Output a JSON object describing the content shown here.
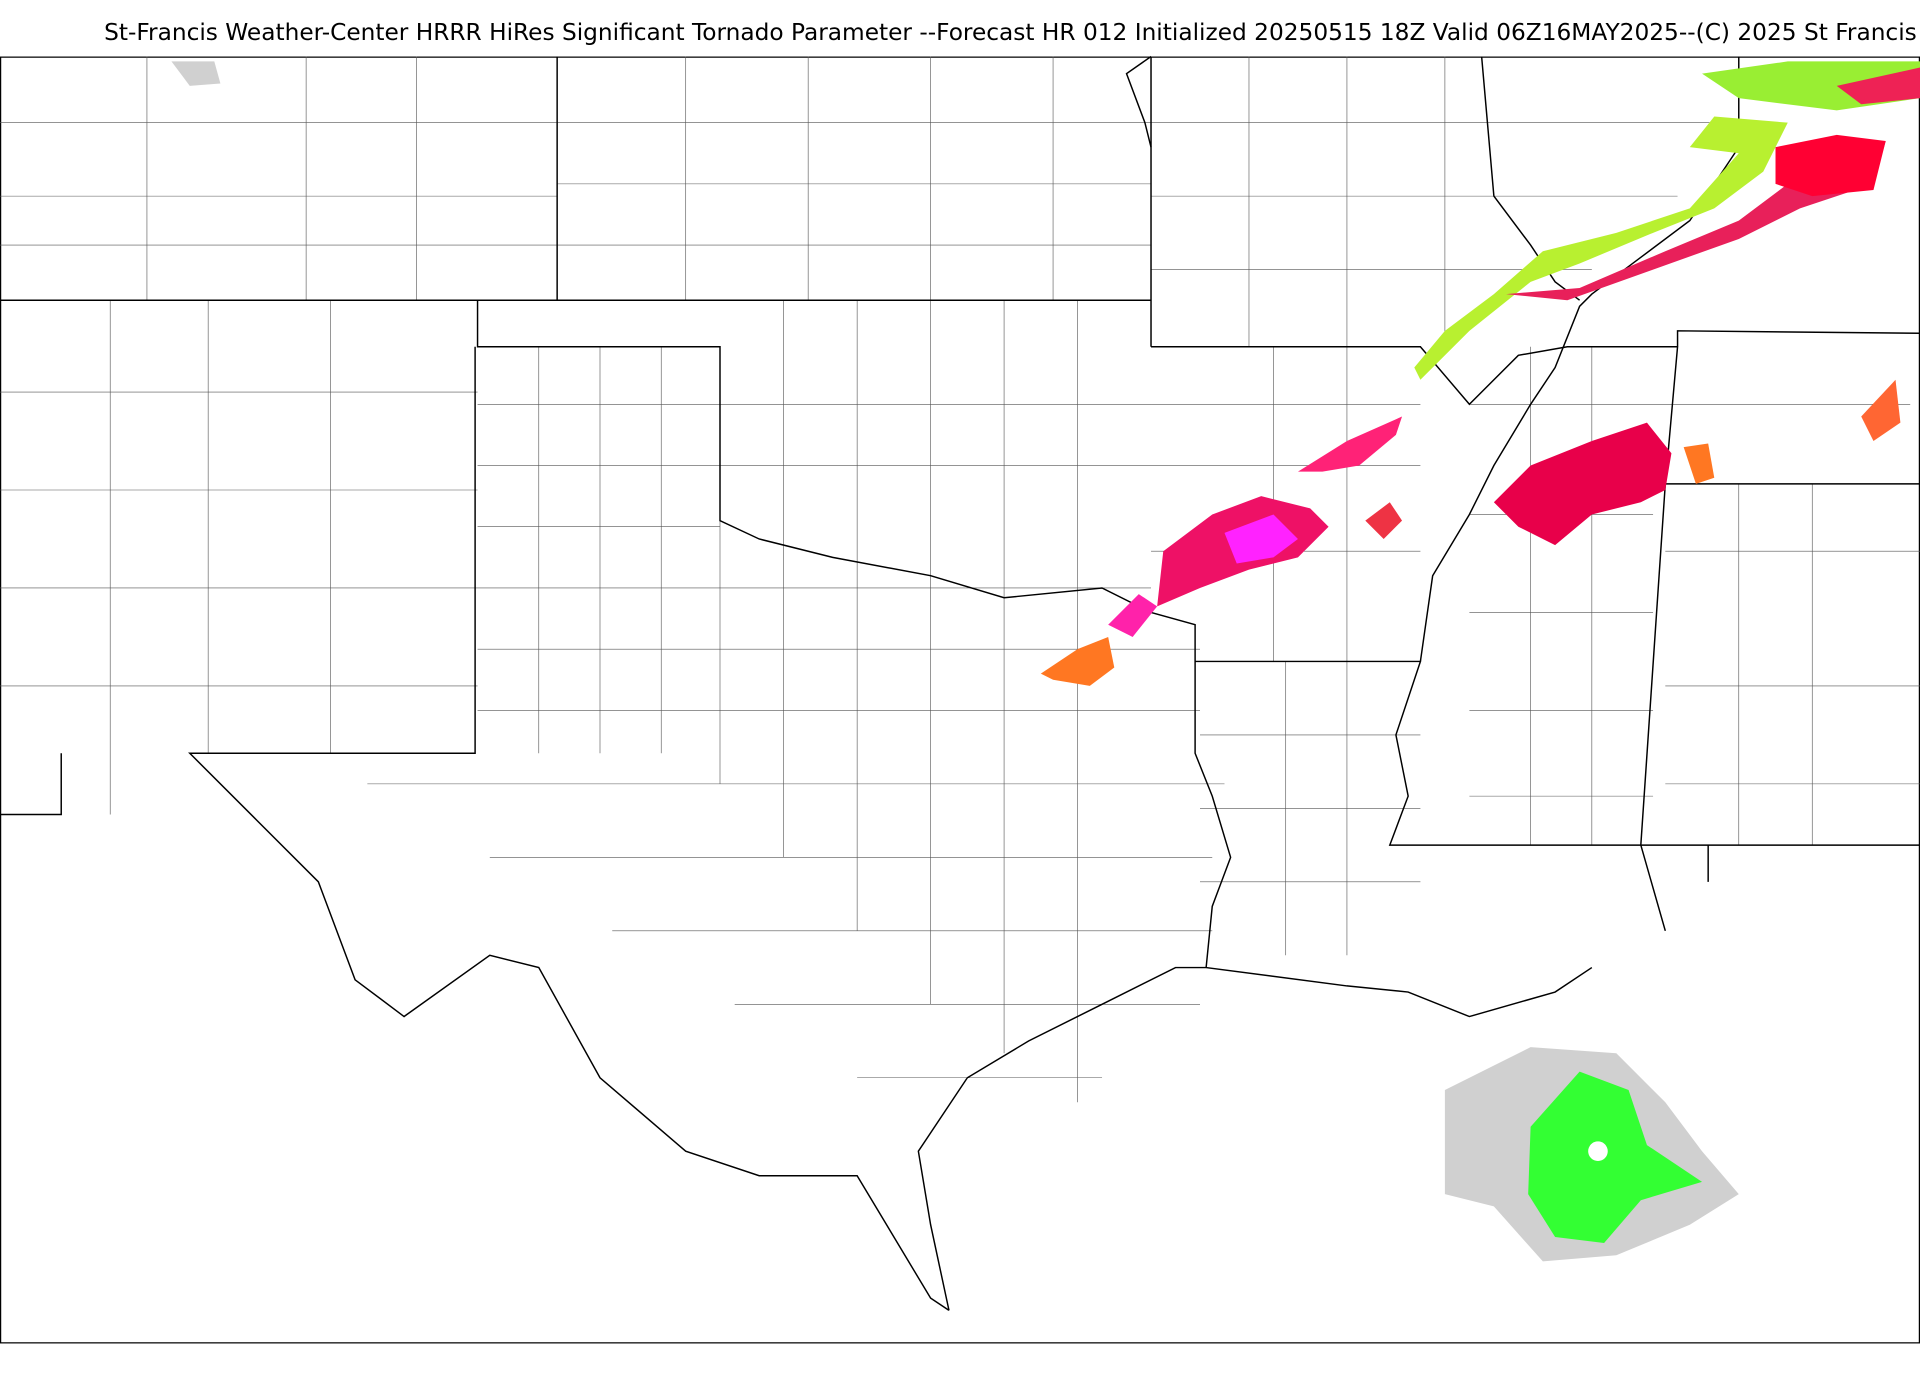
{
  "title": "St-Francis Weather-Center HRRR HiRes Significant Tornado Parameter --Forecast HR 012 Initialized 20250515 18Z Valid 06Z16MAY2025--(C) 2025 St Francis"
}
